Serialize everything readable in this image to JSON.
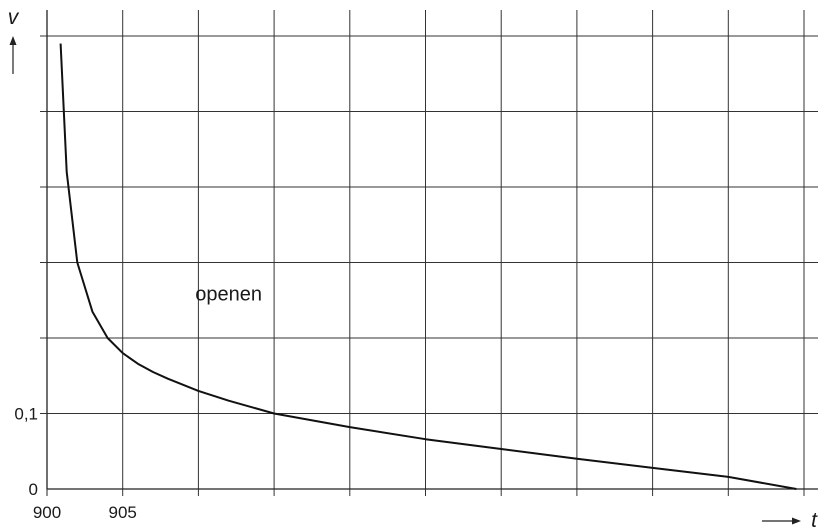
{
  "chart_data": {
    "type": "line",
    "xlabel": "t",
    "ylabel": "v",
    "xlim": [
      900,
      950
    ],
    "ylim": [
      0,
      0.6
    ],
    "grid": true,
    "x_tick_labels": [
      {
        "value": 900,
        "label": "900"
      },
      {
        "value": 905,
        "label": "905"
      }
    ],
    "y_tick_labels": [
      {
        "value": 0,
        "label": "0"
      },
      {
        "value": 0.1,
        "label": "0,1"
      }
    ],
    "annotations": [
      {
        "text": "openen",
        "x": 912,
        "y": 0.25
      }
    ],
    "series": [
      {
        "x": [
          900.9,
          901.3,
          902.0,
          903.0,
          904.0,
          905.0,
          906.0,
          907.0,
          908.0,
          910.0,
          912.0,
          915.0,
          920.0,
          925.0,
          930.0,
          935.0,
          940.0,
          945.0,
          949.5
        ],
        "values": [
          0.59,
          0.42,
          0.3,
          0.235,
          0.2,
          0.18,
          0.166,
          0.155,
          0.146,
          0.13,
          0.117,
          0.1,
          0.082,
          0.066,
          0.053,
          0.04,
          0.028,
          0.016,
          0.0
        ]
      }
    ]
  }
}
